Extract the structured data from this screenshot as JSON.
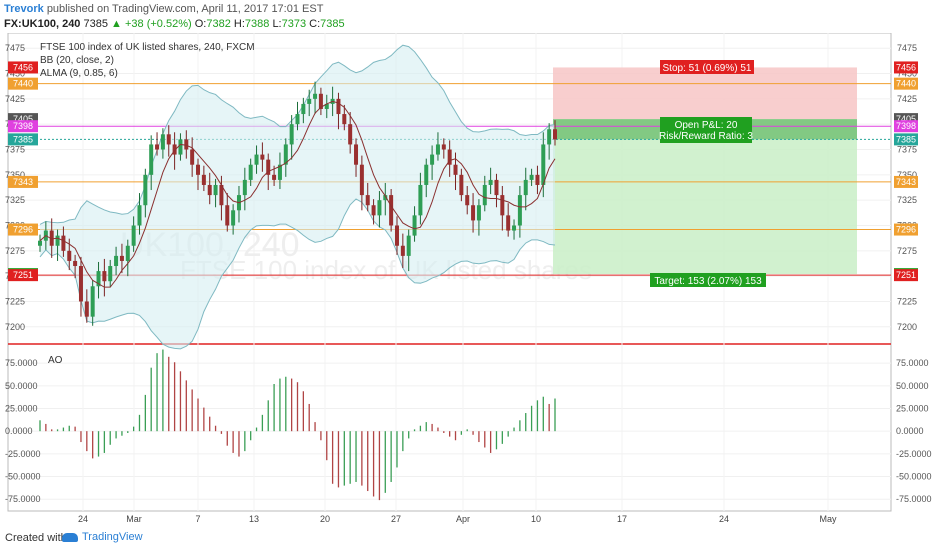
{
  "header": {
    "author": "Trevork",
    "published": "published on TradingView.com, April 11, 2017 17:01 EST",
    "symbol": "FX:UK100, 240",
    "last": "7385",
    "change": "▲ +38 (+0.52%)",
    "o_label": "O:",
    "o": "7382",
    "h_label": "H:",
    "h": "7388",
    "l_label": "L:",
    "l": "7373",
    "c_label": "C:",
    "c": "7385"
  },
  "legend": {
    "title": "FTSE 100 index of UK listed shares, 240, FXCM",
    "bb": "BB (20, close, 2)",
    "alma": "ALMA (9, 0.85, 6)",
    "ao": "AO"
  },
  "watermark": {
    "symbol": "UK100, 240",
    "desc": "FTSE 100 index of UK listed shares"
  },
  "footer": {
    "created": "Created with",
    "brand": "TradingView"
  },
  "colors": {
    "up": "#26a69a",
    "down": "#8a2a2a",
    "bb": "#7fb9c2",
    "alma": "#8a3030",
    "stop_zone": "#f7c5c5",
    "target_zone": "#c9eec7",
    "hline": "#f0a030",
    "magenta": "#e040e0",
    "red": "#e02020"
  },
  "chart_data": {
    "type": "candlestick",
    "title": "FTSE 100 index of UK listed shares, 240, FXCM",
    "y_ticks_main": [
      7200,
      7225,
      7250,
      7275,
      7300,
      7325,
      7350,
      7375,
      7400,
      7425,
      7450,
      7475
    ],
    "y_range_main": [
      7185,
      7490
    ],
    "y_ticks_ao": [
      -75,
      -50,
      -25,
      0,
      25,
      50,
      75
    ],
    "y_range_ao": [
      -88,
      95
    ],
    "x_ticks": [
      "24",
      "Mar",
      "7",
      "13",
      "20",
      "27",
      "Apr",
      "10",
      "17",
      "24",
      "May"
    ],
    "price_labels": [
      {
        "v": 7456,
        "text": "7456",
        "color": "#e02020",
        "side": "both"
      },
      {
        "v": 7440,
        "text": "7440",
        "color": "#f0a030",
        "side": "both"
      },
      {
        "v": 7405,
        "text": "7405",
        "color": "#555555",
        "side": "both"
      },
      {
        "v": 7398,
        "text": "7398",
        "color": "#e040e0",
        "side": "both"
      },
      {
        "v": 7385,
        "text": "7385",
        "color": "#26a69a",
        "side": "both"
      },
      {
        "v": 7343,
        "text": "7343",
        "color": "#f0a030",
        "side": "both"
      },
      {
        "v": 7296,
        "text": "7296",
        "color": "#f0a030",
        "side": "both"
      },
      {
        "v": 7252,
        "text": "7252",
        "color": "#20a020",
        "side": "both"
      },
      {
        "v": 7251,
        "text": "7251",
        "color": "#e02020",
        "side": "both"
      }
    ],
    "hlines": [
      {
        "v": 7440,
        "color": "#f0a030"
      },
      {
        "v": 7398,
        "color": "#e040e0"
      },
      {
        "v": 7343,
        "color": "#f0a030"
      },
      {
        "v": 7296,
        "color": "#f0a030"
      },
      {
        "v": 7251,
        "color": "#e02020"
      }
    ],
    "trade": {
      "entry": 7405,
      "stop": 7456,
      "target": 7252,
      "stop_label": "Stop: 51 (0.69%) 51",
      "pnl_label": "Open P&L: 20",
      "rr_label": "Risk/Reward Ratio: 3",
      "target_label": "Target: 153 (2.07%) 153"
    },
    "closes": [
      7285,
      7295,
      7280,
      7290,
      7275,
      7265,
      7260,
      7225,
      7210,
      7240,
      7255,
      7245,
      7260,
      7270,
      7265,
      7280,
      7300,
      7320,
      7350,
      7380,
      7375,
      7390,
      7380,
      7370,
      7385,
      7375,
      7360,
      7350,
      7340,
      7330,
      7340,
      7320,
      7300,
      7315,
      7330,
      7345,
      7360,
      7370,
      7365,
      7350,
      7345,
      7360,
      7380,
      7400,
      7410,
      7420,
      7425,
      7430,
      7415,
      7420,
      7425,
      7410,
      7400,
      7380,
      7360,
      7330,
      7320,
      7310,
      7325,
      7330,
      7300,
      7280,
      7270,
      7290,
      7310,
      7340,
      7360,
      7370,
      7380,
      7375,
      7360,
      7350,
      7330,
      7320,
      7305,
      7320,
      7340,
      7345,
      7330,
      7310,
      7295,
      7300,
      7330,
      7345,
      7350,
      7340,
      7380,
      7395,
      7385
    ],
    "ao": [
      12,
      8,
      2,
      2,
      4,
      6,
      5,
      -12,
      -22,
      -30,
      -28,
      -24,
      -15,
      -8,
      -5,
      -2,
      5,
      18,
      40,
      70,
      86,
      90,
      82,
      76,
      66,
      56,
      46,
      36,
      26,
      16,
      6,
      -3,
      -16,
      -24,
      -28,
      -22,
      -10,
      4,
      18,
      34,
      52,
      58,
      60,
      58,
      54,
      44,
      30,
      10,
      -10,
      -32,
      -58,
      -62,
      -60,
      -58,
      -56,
      -60,
      -66,
      -72,
      -76,
      -68,
      -56,
      -40,
      -22,
      -8,
      2,
      6,
      10,
      8,
      4,
      -2,
      -6,
      -10,
      -4,
      2,
      -4,
      -12,
      -18,
      -24,
      -20,
      -14,
      -6,
      4,
      12,
      20,
      28,
      34,
      38,
      30,
      36
    ]
  }
}
